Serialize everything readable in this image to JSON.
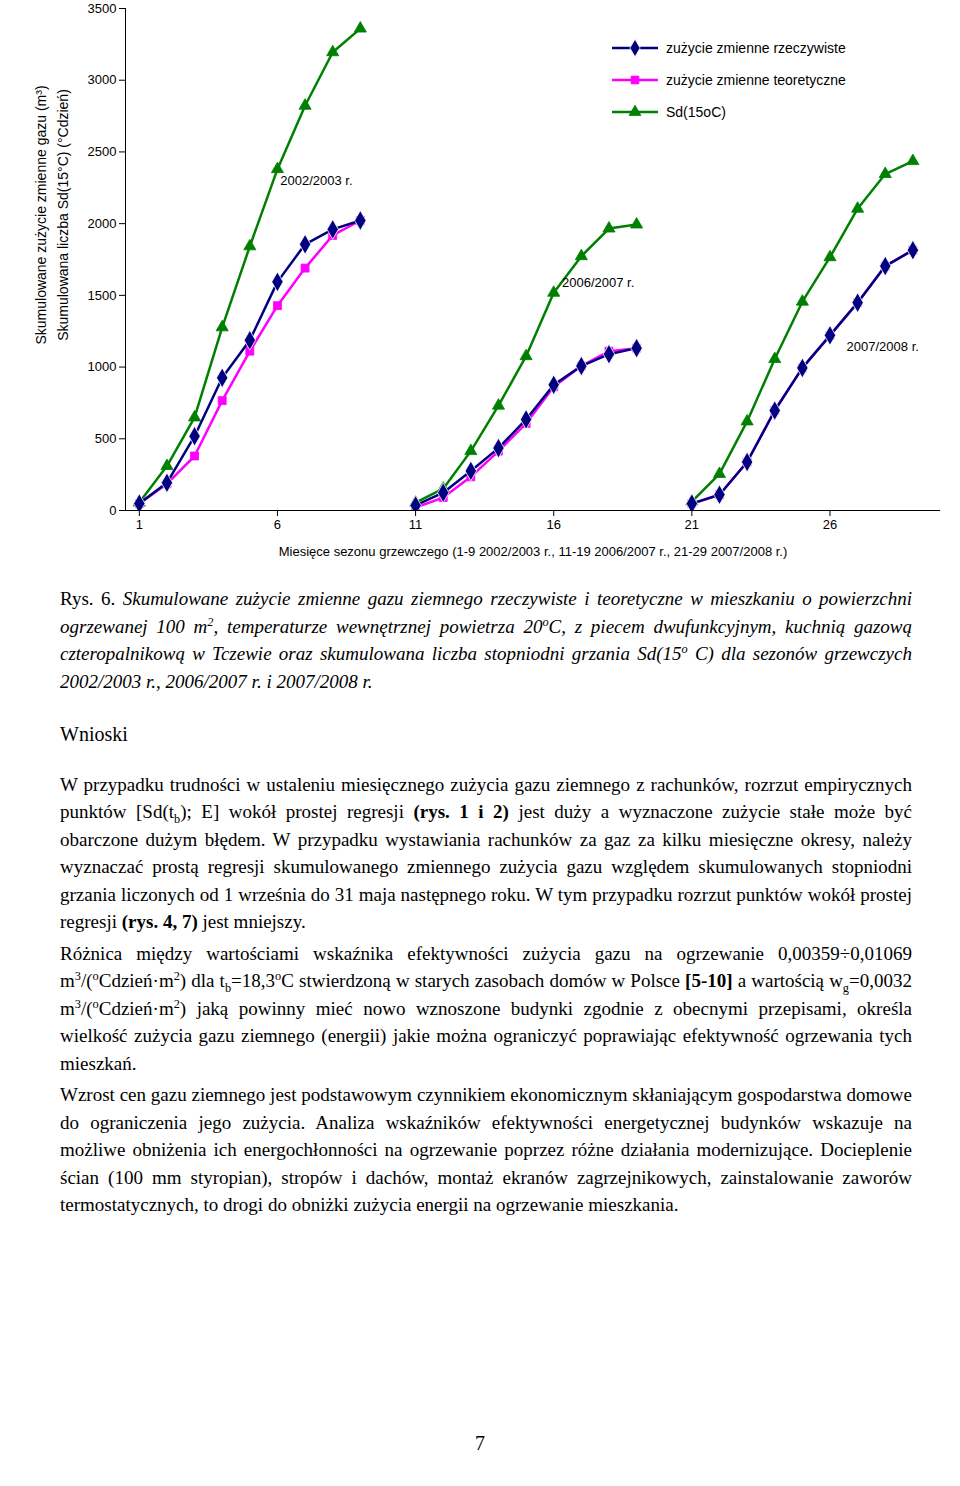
{
  "chart_data": {
    "type": "line",
    "x": [
      1,
      2,
      3,
      4,
      5,
      6,
      7,
      8,
      9,
      10,
      11,
      12,
      13,
      14,
      15,
      16,
      17,
      18,
      19,
      20,
      21,
      22,
      23,
      24,
      25,
      26,
      27,
      28,
      29
    ],
    "xlim": [
      0.5,
      30
    ],
    "xticks": [
      1,
      6,
      11,
      16,
      21,
      26
    ],
    "ylim": [
      0,
      3500
    ],
    "yticks": [
      0,
      500,
      1000,
      1500,
      2000,
      2500,
      3000,
      3500
    ],
    "xlabel": "Miesięce sezonu grzewczego (1-9 2002/2003 r., 11-19 2006/2007 r., 21-29 2007/2008 r.)",
    "ylabel": [
      "Skumulowane zużycie zmienne gazu (m³)",
      "Skumulowana liczba Sd(15°C) (°Cdzień)"
    ],
    "grid": false,
    "legend": "top-right",
    "series": [
      {
        "name": "zużycie zmienne rzeczywiste",
        "color": "#000080",
        "marker": "diamond",
        "line_style": "solid",
        "values": [
          48,
          193,
          518,
          925,
          1187,
          1594,
          1856,
          1960,
          2022,
          null,
          35,
          124,
          276,
          435,
          635,
          876,
          1007,
          1090,
          1132,
          null,
          48,
          110,
          338,
          697,
          994,
          1221,
          1449,
          1704,
          1815
        ]
      },
      {
        "name": "zużycie zmienne teoretyczne",
        "color": "#ff00ff",
        "marker": "square",
        "line_style": "solid",
        "values": [
          48,
          186,
          380,
          766,
          1111,
          1428,
          1690,
          1918,
          2022,
          null,
          21,
          90,
          235,
          414,
          607,
          862,
          1007,
          1111,
          1132,
          null,
          48,
          110,
          338,
          697,
          994,
          1221,
          1449,
          1704,
          1815
        ]
      },
      {
        "name": "Sd(15oC)",
        "color": "#008000",
        "marker": "triangle",
        "line_style": "solid",
        "values": [
          55,
          310,
          649,
          1277,
          1842,
          2380,
          2822,
          3195,
          3360,
          null,
          55,
          152,
          414,
          731,
          1076,
          1518,
          1773,
          1966,
          1994,
          null,
          62,
          255,
          621,
          1056,
          1456,
          1766,
          2104,
          2346,
          2436
        ]
      }
    ],
    "annotations": [
      {
        "text": "2002/2003 r.",
        "x": 6.1,
        "y": 2300
      },
      {
        "text": "2006/2007 r.",
        "x": 16.3,
        "y": 1590
      },
      {
        "text": "2007/2008 r.",
        "x": 26.6,
        "y": 1140
      }
    ]
  },
  "document": {
    "caption": [
      {
        "text": "Rys. 6. ",
        "style": "upright"
      },
      "Skumulowane zużycie zmienne gazu ziemnego rzeczywiste i teoretyczne w mieszkaniu o powierzchni ogrzewanej 100 m",
      {
        "text": "2",
        "style": "sup"
      },
      ", temperaturze wewnętrznej powietrza 20",
      {
        "text": "o",
        "style": "sup"
      },
      "C, z piecem dwufunkcyjnym, kuchnią gazową czteropalnikową w Tczewie oraz skumulowana liczba stopniodni grzania Sd(15",
      {
        "text": "o",
        "style": "sup"
      },
      " C) dla sezonów grzewczych 2002/2003 r., 2006/2007 r. i 2007/2008 r."
    ],
    "heading": "Wnioski",
    "paragraphs": [
      [
        "W przypadku trudności w ustaleniu miesięcznego zużycia gazu ziemnego z rachunków, rozrzut empirycznych punktów [Sd(t",
        {
          "text": "b",
          "style": "sub"
        },
        "); E] wokół prostej regresji ",
        {
          "text": "(rys. 1 i 2)",
          "style": "bold"
        },
        " jest duży a wyznaczone zużycie stałe może być obarczone dużym błędem. W przypadku wystawiania rachunków za gaz za kilku miesięczne okresy, należy wyznaczać prostą regresji skumulowanego zmiennego zużycia gazu względem skumulowanych stopniodni grzania liczonych od 1 września do 31 maja następnego roku. W tym przypadku rozrzut punktów wokół prostej regresji ",
        {
          "text": "(rys. 4, 7)",
          "style": "bold"
        },
        " jest mniejszy."
      ],
      [
        "Różnica między wartościami wskaźnika efektywności zużycia gazu na ogrzewanie 0,00359÷0,01069 m",
        {
          "text": "3",
          "style": "sup"
        },
        "/(",
        {
          "text": "o",
          "style": "sup"
        },
        "Cdzień·m",
        {
          "text": "2",
          "style": "sup"
        },
        ") dla t",
        {
          "text": "b",
          "style": "sub"
        },
        "=18,3",
        {
          "text": "o",
          "style": "sup"
        },
        "C stwierdzoną w starych zasobach domów w Polsce ",
        {
          "text": "[5-10]",
          "style": "bold"
        },
        " a wartością w",
        {
          "text": "g",
          "style": "sub"
        },
        "=0,0032 m",
        {
          "text": "3",
          "style": "sup"
        },
        "/(",
        {
          "text": "o",
          "style": "sup"
        },
        "Cdzień·m",
        {
          "text": "2",
          "style": "sup"
        },
        ") jaką powinny mieć nowo wznoszone budynki zgodnie z obecnymi przepisami, określa wielkość zużycia gazu ziemnego (energii) jakie można ograniczyć poprawiając efektywność ogrzewania tych mieszkań."
      ],
      [
        "Wzrost cen gazu ziemnego jest podstawowym czynnikiem ekonomicznym skłaniającym gospodarstwa domowe do ograniczenia jego zużycia. Analiza wskaźników efektywności energetycznej budynków wskazuje na możliwe obniżenia ich energochłonności na ogrzewanie poprzez różne działania modernizujące. Docieplenie ścian (100 mm styropian), stropów i dachów, montaż ekranów zagrzejnikowych, zainstalowanie zaworów termostatycznych, to drogi do obniżki zużycia energii na ogrzewanie mieszkania."
      ]
    ],
    "page_number": "7"
  }
}
